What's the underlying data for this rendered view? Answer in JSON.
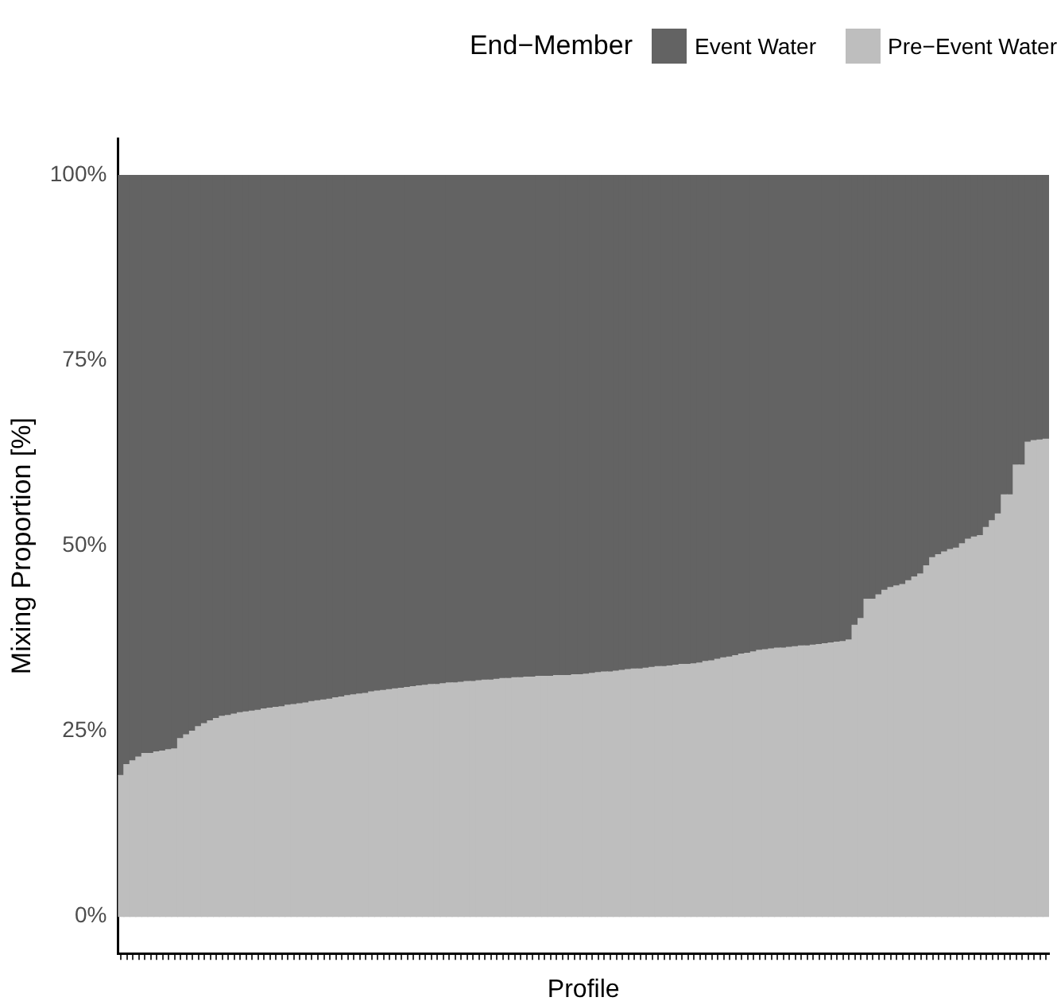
{
  "chart_data": {
    "type": "bar",
    "stacked": true,
    "xlabel": "Profile",
    "ylabel": "Mixing Proportion [%]",
    "legend_title": "End−Member",
    "legend": "top",
    "ylim": [
      -5,
      105
    ],
    "yticks": [
      {
        "value": 0,
        "label": "0%"
      },
      {
        "value": 25,
        "label": "25%"
      },
      {
        "value": 50,
        "label": "50%"
      },
      {
        "value": 75,
        "label": "75%"
      },
      {
        "value": 100,
        "label": "100%"
      }
    ],
    "categories": [
      null,
      null,
      null,
      null,
      null,
      null,
      null,
      null,
      null,
      null,
      null,
      null,
      null,
      null,
      null,
      null,
      null,
      null,
      null,
      null,
      null,
      null,
      null,
      null,
      null,
      null,
      null,
      null,
      null,
      null,
      null,
      null,
      null,
      null,
      null,
      null,
      null,
      null,
      null,
      null,
      null,
      null,
      null,
      null,
      null,
      null,
      null,
      null,
      null,
      null,
      null,
      null,
      null,
      null,
      null,
      null,
      null,
      null,
      null,
      null,
      null,
      null,
      null,
      null,
      null,
      null,
      null,
      null,
      null,
      null,
      null,
      null,
      null,
      null,
      null,
      null,
      null,
      null,
      null,
      null,
      null,
      null,
      null,
      null,
      null,
      null,
      null,
      null,
      null,
      null,
      null,
      null,
      null,
      null,
      null,
      null,
      null,
      null,
      null,
      null,
      null,
      null,
      null,
      null,
      null,
      null,
      null,
      null,
      null,
      null,
      null,
      null,
      null,
      null,
      null,
      null,
      null,
      null,
      null,
      null,
      null,
      null,
      null,
      null,
      null,
      null,
      null,
      null,
      null,
      null,
      null,
      null,
      null,
      null,
      null,
      null,
      null,
      null,
      null,
      null,
      null,
      null,
      null,
      null,
      null,
      null,
      null,
      null,
      null,
      null,
      null,
      null,
      null,
      null,
      null,
      null
    ],
    "series": [
      {
        "name": "Pre−Event Water",
        "color": "#bebebe",
        "values": [
          19.0,
          20.5,
          21.0,
          21.5,
          22.0,
          22.0,
          22.2,
          22.3,
          22.5,
          22.6,
          24.0,
          24.5,
          25.0,
          25.6,
          26.0,
          26.4,
          26.7,
          27.0,
          27.1,
          27.3,
          27.5,
          27.6,
          27.7,
          27.8,
          28.0,
          28.1,
          28.2,
          28.3,
          28.5,
          28.6,
          28.7,
          28.8,
          29.0,
          29.1,
          29.2,
          29.3,
          29.5,
          29.6,
          29.8,
          29.9,
          30.0,
          30.1,
          30.3,
          30.4,
          30.5,
          30.6,
          30.7,
          30.8,
          30.9,
          31.0,
          31.1,
          31.2,
          31.3,
          31.3,
          31.4,
          31.5,
          31.5,
          31.6,
          31.7,
          31.7,
          31.8,
          31.9,
          31.9,
          32.0,
          32.1,
          32.1,
          32.2,
          32.2,
          32.3,
          32.3,
          32.4,
          32.4,
          32.4,
          32.5,
          32.5,
          32.5,
          32.6,
          32.6,
          32.7,
          32.8,
          32.9,
          33.0,
          33.0,
          33.1,
          33.2,
          33.3,
          33.4,
          33.4,
          33.5,
          33.6,
          33.7,
          33.7,
          33.8,
          33.9,
          34.0,
          34.0,
          34.1,
          34.2,
          34.4,
          34.5,
          34.7,
          34.9,
          35.0,
          35.2,
          35.4,
          35.5,
          35.7,
          35.9,
          36.0,
          36.1,
          36.2,
          36.2,
          36.3,
          36.4,
          36.5,
          36.5,
          36.6,
          36.7,
          36.8,
          36.9,
          37.0,
          37.1,
          37.3,
          39.3,
          40.2,
          42.8,
          42.8,
          43.4,
          44.0,
          44.4,
          44.6,
          44.8,
          45.3,
          45.8,
          46.2,
          47.3,
          48.4,
          48.8,
          49.2,
          49.5,
          49.7,
          50.3,
          50.9,
          51.2,
          51.4,
          52.5,
          53.4,
          54.3,
          56.9,
          56.9,
          60.9,
          60.9,
          64.0,
          64.2,
          64.3,
          64.4
        ]
      },
      {
        "name": "Event Water",
        "color": "#636363",
        "values": [
          81.0,
          79.5,
          79.0,
          78.5,
          78.0,
          78.0,
          77.8,
          77.7,
          77.5,
          77.4,
          76.0,
          75.5,
          75.0,
          74.4,
          74.0,
          73.6,
          73.3,
          73.0,
          72.9,
          72.7,
          72.5,
          72.4,
          72.3,
          72.2,
          72.0,
          71.9,
          71.8,
          71.7,
          71.5,
          71.4,
          71.3,
          71.2,
          71.0,
          70.9,
          70.8,
          70.7,
          70.5,
          70.4,
          70.2,
          70.1,
          70.0,
          69.9,
          69.7,
          69.6,
          69.5,
          69.4,
          69.3,
          69.2,
          69.1,
          69.0,
          68.9,
          68.8,
          68.7,
          68.7,
          68.6,
          68.5,
          68.5,
          68.4,
          68.3,
          68.3,
          68.2,
          68.1,
          68.1,
          68.0,
          67.9,
          67.9,
          67.8,
          67.8,
          67.7,
          67.7,
          67.6,
          67.6,
          67.6,
          67.5,
          67.5,
          67.5,
          67.4,
          67.4,
          67.3,
          67.2,
          67.1,
          67.0,
          67.0,
          66.9,
          66.8,
          66.7,
          66.6,
          66.6,
          66.5,
          66.4,
          66.3,
          66.3,
          66.2,
          66.1,
          66.0,
          66.0,
          65.9,
          65.8,
          65.6,
          65.5,
          65.3,
          65.1,
          65.0,
          64.8,
          64.6,
          64.5,
          64.3,
          64.1,
          64.0,
          63.9,
          63.8,
          63.8,
          63.7,
          63.6,
          63.5,
          63.5,
          63.4,
          63.3,
          63.2,
          63.1,
          63.0,
          62.9,
          62.7,
          60.7,
          59.8,
          57.2,
          57.2,
          56.6,
          56.0,
          55.6,
          55.4,
          55.2,
          54.7,
          54.2,
          53.8,
          52.7,
          51.6,
          51.2,
          50.8,
          50.5,
          50.3,
          49.7,
          49.1,
          48.8,
          48.6,
          47.5,
          46.6,
          45.7,
          43.1,
          43.1,
          39.1,
          39.1,
          36.0,
          35.8,
          35.7,
          35.6
        ]
      }
    ]
  }
}
